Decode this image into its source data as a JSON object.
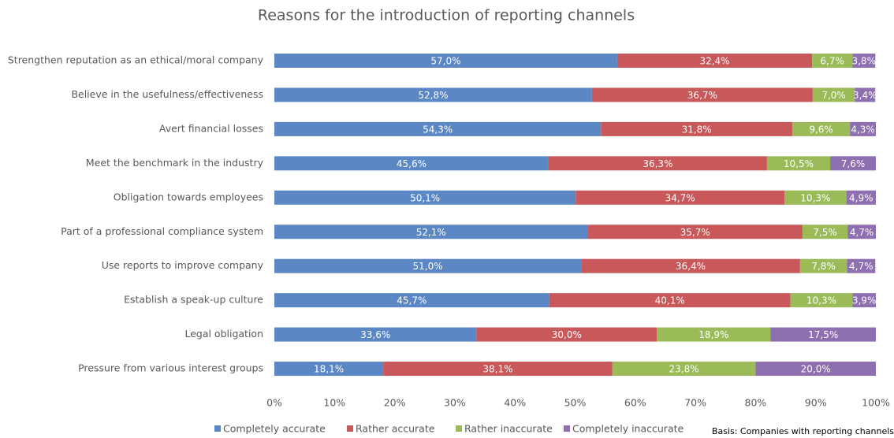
{
  "chart_data": {
    "type": "stacked_barh",
    "title": "Reasons for the introduction of reporting channels",
    "annotation": "Basis: Companies with reporting channels",
    "categories": [
      "Strengthen reputation as an ethical/moral company",
      "Believe in the usefulness/effectiveness",
      "Avert financial losses",
      "Meet the benchmark in the industry",
      "Obligation towards employees",
      "Part of a professional compliance system",
      "Use reports to improve company",
      "Establish a speak-up culture",
      "Legal obligation",
      "Pressure from various interest groups"
    ],
    "series": [
      {
        "name": "Completely accurate",
        "color": "#5b87c5",
        "values": [
          57.0,
          52.8,
          54.3,
          45.6,
          50.1,
          52.1,
          51.0,
          45.7,
          33.6,
          18.1
        ],
        "value_labels": [
          "57,0%",
          "52,8%",
          "54,3%",
          "45,6%",
          "50,1%",
          "52,1%",
          "51,0%",
          "45,7%",
          "33,6%",
          "18,1%"
        ]
      },
      {
        "name": "Rather accurate",
        "color": "#c9585a",
        "values": [
          32.4,
          36.7,
          31.8,
          36.3,
          34.7,
          35.7,
          36.4,
          40.1,
          30.0,
          38.1
        ],
        "value_labels": [
          "32,4%",
          "36,7%",
          "31,8%",
          "36,3%",
          "34,7%",
          "35,7%",
          "36,4%",
          "40,1%",
          "30,0%",
          "38,1%"
        ]
      },
      {
        "name": "Rather inaccurate",
        "color": "#9bbb59",
        "values": [
          6.7,
          7.0,
          9.6,
          10.5,
          10.3,
          7.5,
          7.8,
          10.3,
          18.9,
          23.8
        ],
        "value_labels": [
          "6,7%",
          "7,0%",
          "9,6%",
          "10,5%",
          "10,3%",
          "7,5%",
          "7,8%",
          "10,3%",
          "18,9%",
          "23,8%"
        ]
      },
      {
        "name": "Completely inaccurate",
        "color": "#8e6fb0",
        "values": [
          3.8,
          3.4,
          4.3,
          7.6,
          4.9,
          4.7,
          4.7,
          3.9,
          17.5,
          20.0
        ],
        "value_labels": [
          "3,8%",
          "3,4%",
          "4,3%",
          "7,6%",
          "4,9%",
          "4,7%",
          "4,7%",
          "3,9%",
          "17,5%",
          "20,0%"
        ]
      }
    ],
    "xlim": [
      0,
      100
    ],
    "xticks": [
      {
        "value": 0,
        "label": "0%"
      },
      {
        "value": 10,
        "label": "10%"
      },
      {
        "value": 20,
        "label": "20%"
      },
      {
        "value": 30,
        "label": "30%"
      },
      {
        "value": 40,
        "label": "40%"
      },
      {
        "value": 50,
        "label": "50%"
      },
      {
        "value": 60,
        "label": "60%"
      },
      {
        "value": 70,
        "label": "70%"
      },
      {
        "value": 80,
        "label": "80%"
      },
      {
        "value": 90,
        "label": "90%"
      },
      {
        "value": 100,
        "label": "100%"
      }
    ],
    "grid": false,
    "legend": "bottom"
  }
}
